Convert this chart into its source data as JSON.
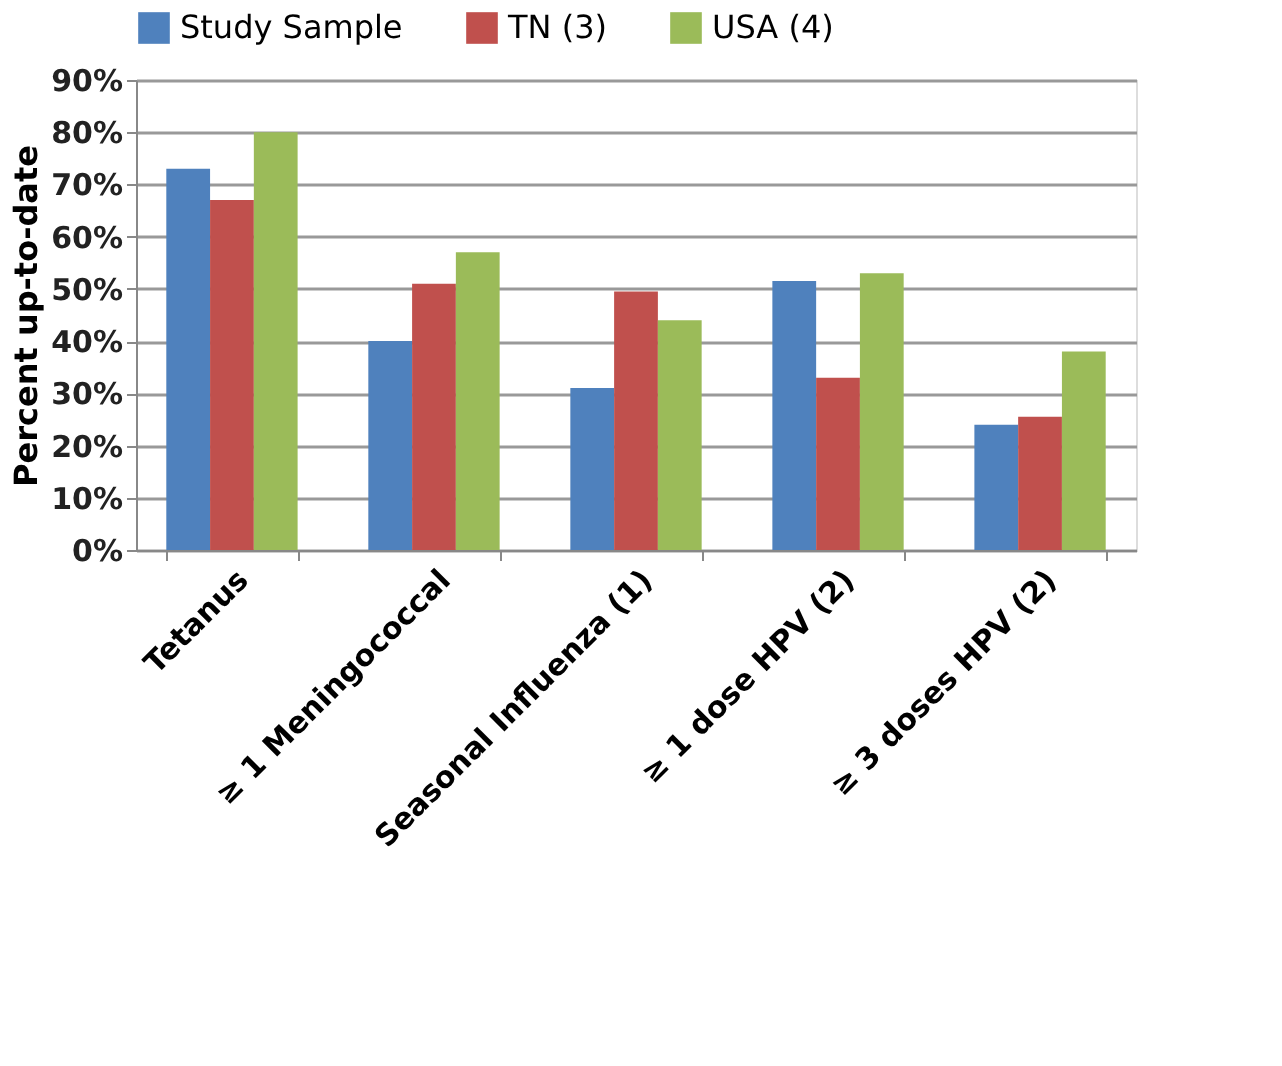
{
  "chart_data": {
    "type": "bar",
    "ylabel": "Percent up-to-date",
    "categories": [
      "Tetanus",
      "≥ 1 Meningococcal",
      "Seasonal Influenza (1)",
      "≥ 1 dose HPV (2)",
      "≥ 3 doses HPV (2)"
    ],
    "series": [
      {
        "name": "Study Sample",
        "color": "#4f81bd",
        "values": [
          73,
          40,
          31,
          51.5,
          24
        ]
      },
      {
        "name": "TN (3)",
        "color": "#c0504d",
        "values": [
          67,
          51,
          49.5,
          33,
          25.5
        ]
      },
      {
        "name": "USA (4)",
        "color": "#9bbb59",
        "values": [
          80,
          57,
          44,
          53,
          38
        ]
      }
    ],
    "ylim": [
      0,
      90
    ],
    "yticks": [
      {
        "value": 0,
        "label": "0%"
      },
      {
        "value": 10,
        "label": "10%"
      },
      {
        "value": 20,
        "label": "20%"
      },
      {
        "value": 30,
        "label": "30%"
      },
      {
        "value": 40,
        "label": "40%"
      },
      {
        "value": 50,
        "label": "50%"
      },
      {
        "value": 60,
        "label": "60%"
      },
      {
        "value": 70,
        "label": "70%"
      },
      {
        "value": 80,
        "label": "80%"
      },
      {
        "value": 90,
        "label": "90%"
      }
    ],
    "grid": "y",
    "legend": "top"
  }
}
